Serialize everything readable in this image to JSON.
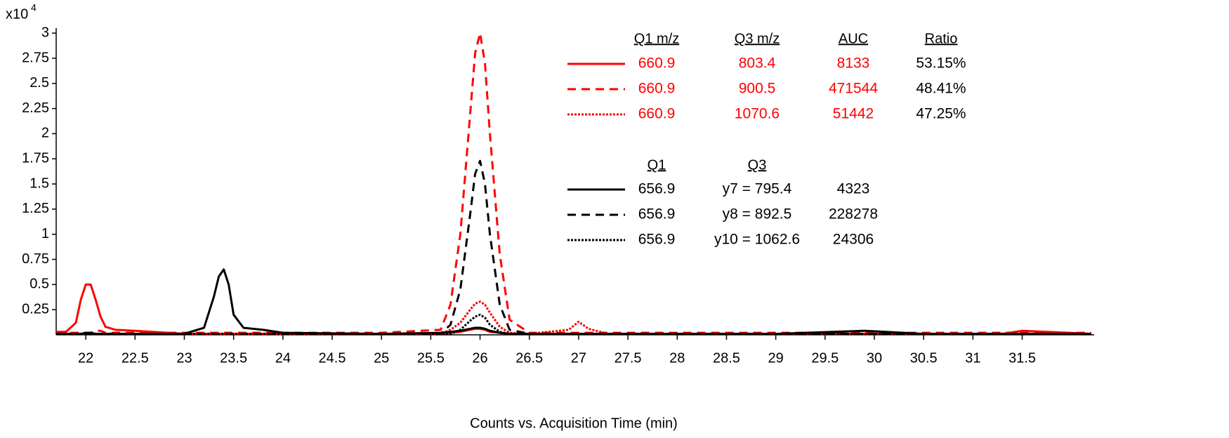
{
  "chart_data": {
    "type": "line",
    "y_multiplier": "x10",
    "y_exponent": "4",
    "x_label": "Counts vs. Acquisition Time (min)",
    "xlim": [
      21.7,
      32.23
    ],
    "ylim": [
      0,
      3.05
    ],
    "xticks": [
      22,
      22.5,
      23,
      23.5,
      24,
      24.5,
      25,
      25.5,
      26,
      26.5,
      27,
      27.5,
      28,
      28.5,
      29,
      29.5,
      30,
      30.5,
      31,
      31.5
    ],
    "yticks": [
      0.25,
      0.5,
      0.75,
      1,
      1.25,
      1.5,
      1.75,
      2,
      2.25,
      2.5,
      2.75,
      3
    ],
    "x": [
      21.7,
      21.8,
      21.9,
      21.95,
      22.0,
      22.05,
      22.1,
      22.15,
      22.2,
      22.3,
      22.5,
      23.0,
      23.2,
      23.3,
      23.35,
      23.4,
      23.45,
      23.5,
      23.6,
      23.8,
      24.0,
      25.0,
      25.6,
      25.7,
      25.8,
      25.9,
      25.95,
      26.0,
      26.05,
      26.1,
      26.2,
      26.3,
      26.5,
      26.9,
      27.0,
      27.1,
      27.3,
      28.0,
      29.0,
      29.9,
      30.5,
      31.3,
      31.5,
      32.2
    ],
    "legend_headers": [
      [
        "Q1 m/z",
        "Q3 m/z",
        "AUC",
        "Ratio"
      ],
      [
        "Q1",
        "Q3"
      ]
    ],
    "series": [
      {
        "color": "#ff0000",
        "dash": "solid",
        "q1": "660.9",
        "q3": "803.4",
        "auc": "8133",
        "ratio": "53.15%",
        "values": [
          0.03,
          0.03,
          0.12,
          0.35,
          0.5,
          0.5,
          0.35,
          0.18,
          0.08,
          0.05,
          0.04,
          0.01,
          0.01,
          0.01,
          0.01,
          0.01,
          0.01,
          0.01,
          0.01,
          0.01,
          0.01,
          0.01,
          0.01,
          0.02,
          0.03,
          0.05,
          0.06,
          0.06,
          0.05,
          0.03,
          0.02,
          0.01,
          0.01,
          0.01,
          0.01,
          0.01,
          0.01,
          0.01,
          0.01,
          0.01,
          0.01,
          0.01,
          0.04,
          0.01
        ]
      },
      {
        "color": "#ff0000",
        "dash": "dashed",
        "q1": "660.9",
        "q3": "900.5",
        "auc": "471544",
        "ratio": "48.41%",
        "values": [
          0.02,
          0.02,
          0.02,
          0.02,
          0.02,
          0.02,
          0.04,
          0.04,
          0.02,
          0.02,
          0.02,
          0.02,
          0.02,
          0.02,
          0.02,
          0.02,
          0.02,
          0.02,
          0.02,
          0.02,
          0.02,
          0.02,
          0.05,
          0.3,
          1.0,
          2.2,
          2.8,
          3.0,
          2.7,
          2.0,
          0.8,
          0.15,
          0.02,
          0.02,
          0.02,
          0.02,
          0.02,
          0.02,
          0.02,
          0.02,
          0.02,
          0.02,
          0.02,
          0.02
        ]
      },
      {
        "color": "#ff0000",
        "dash": "dotted",
        "q1": "660.9",
        "q3": "1070.6",
        "auc": "51442",
        "ratio": "47.25%",
        "values": [
          0.01,
          0.01,
          0.01,
          0.01,
          0.01,
          0.01,
          0.01,
          0.01,
          0.01,
          0.01,
          0.01,
          0.01,
          0.01,
          0.01,
          0.01,
          0.01,
          0.01,
          0.01,
          0.01,
          0.01,
          0.01,
          0.01,
          0.01,
          0.05,
          0.12,
          0.25,
          0.31,
          0.33,
          0.3,
          0.22,
          0.08,
          0.02,
          0.01,
          0.05,
          0.13,
          0.06,
          0.01,
          0.01,
          0.01,
          0.01,
          0.01,
          0.01,
          0.01,
          0.01
        ]
      },
      {
        "color": "#000000",
        "dash": "solid",
        "q1": "656.9",
        "q3": "y7 = 795.4",
        "auc": "4323",
        "values": [
          0.01,
          0.01,
          0.01,
          0.01,
          0.02,
          0.02,
          0.01,
          0.01,
          0.01,
          0.01,
          0.01,
          0.01,
          0.07,
          0.38,
          0.58,
          0.65,
          0.5,
          0.2,
          0.07,
          0.05,
          0.02,
          0.01,
          0.02,
          0.03,
          0.04,
          0.06,
          0.07,
          0.07,
          0.06,
          0.04,
          0.02,
          0.01,
          0.01,
          0.01,
          0.01,
          0.01,
          0.01,
          0.01,
          0.01,
          0.04,
          0.01,
          0.01,
          0.01,
          0.01
        ]
      },
      {
        "color": "#000000",
        "dash": "dashed",
        "q1": "656.9",
        "q3": "y8 = 892.5",
        "auc": "228278",
        "values": [
          0.01,
          0.01,
          0.01,
          0.01,
          0.01,
          0.01,
          0.01,
          0.01,
          0.01,
          0.01,
          0.01,
          0.01,
          0.01,
          0.01,
          0.01,
          0.01,
          0.01,
          0.01,
          0.01,
          0.01,
          0.01,
          0.01,
          0.01,
          0.1,
          0.45,
          1.2,
          1.6,
          1.73,
          1.5,
          1.0,
          0.3,
          0.05,
          0.01,
          0.01,
          0.01,
          0.01,
          0.01,
          0.01,
          0.01,
          0.01,
          0.01,
          0.01,
          0.01,
          0.01
        ]
      },
      {
        "color": "#000000",
        "dash": "dotted",
        "q1": "656.9",
        "q3": "y10 = 1062.6",
        "auc": "24306",
        "values": [
          0.01,
          0.01,
          0.01,
          0.01,
          0.01,
          0.01,
          0.01,
          0.01,
          0.01,
          0.01,
          0.01,
          0.01,
          0.01,
          0.01,
          0.01,
          0.01,
          0.01,
          0.01,
          0.01,
          0.01,
          0.01,
          0.01,
          0.01,
          0.01,
          0.05,
          0.14,
          0.18,
          0.2,
          0.17,
          0.1,
          0.03,
          0.01,
          0.01,
          0.01,
          0.01,
          0.01,
          0.01,
          0.01,
          0.01,
          0.01,
          0.01,
          0.01,
          0.01,
          0.01
        ]
      }
    ]
  }
}
